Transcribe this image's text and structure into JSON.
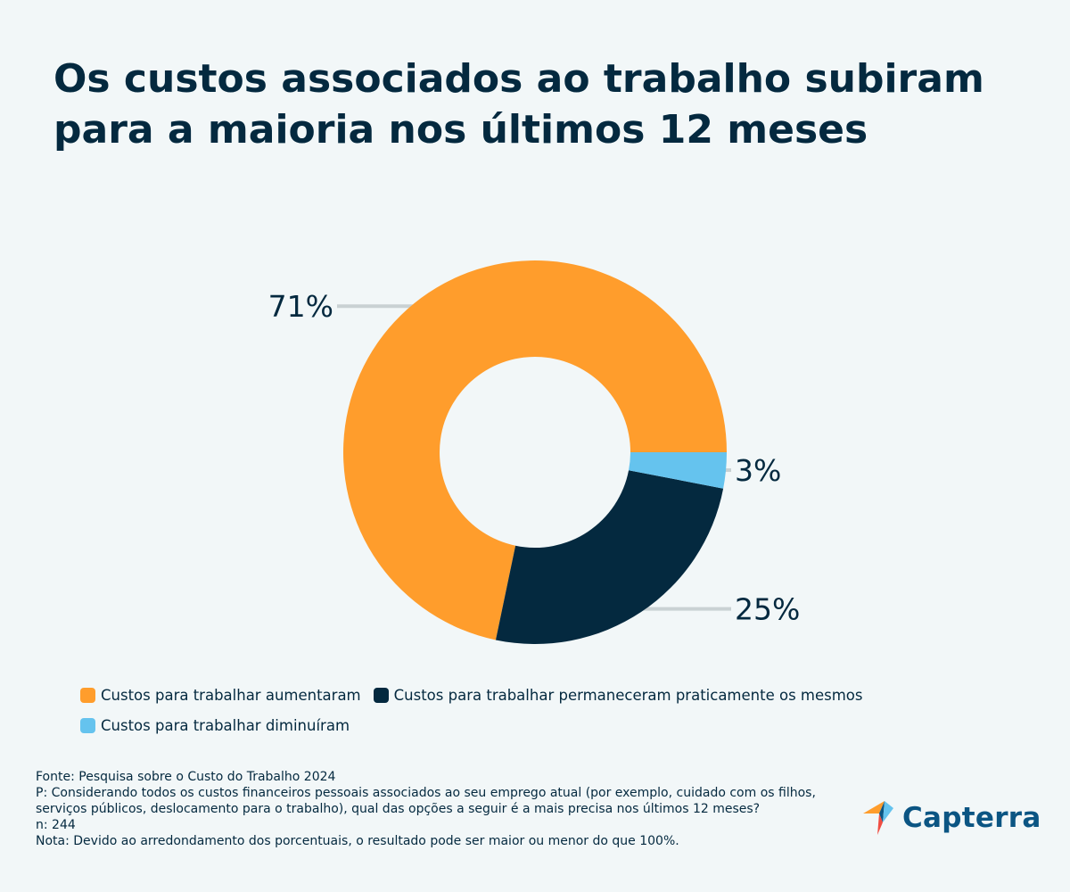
{
  "title": {
    "line1": "Os custos associados ao trabalho subiram",
    "line2": "para a maioria nos últimos 12 meses"
  },
  "chart_data": {
    "type": "pie",
    "variant": "donut",
    "title": "Os custos associados ao trabalho subiram para a maioria nos últimos 12 meses",
    "categories": [
      "Custos para trabalhar aumentaram",
      "Custos para trabalhar permaneceram praticamente os mesmos",
      "Custos para trabalhar diminuíram"
    ],
    "values": [
      71,
      25,
      3
    ],
    "labels": [
      "71%",
      "25%",
      "3%"
    ],
    "colors": [
      "#ff9d2c",
      "#04293f",
      "#65c3ee"
    ],
    "legend_position": "bottom"
  },
  "legend": {
    "items": [
      {
        "label": "Custos para trabalhar aumentaram",
        "color": "#ff9d2c"
      },
      {
        "label": "Custos para trabalhar permaneceram praticamente os mesmos",
        "color": "#04293f"
      },
      {
        "label": "Custos para trabalhar diminuíram",
        "color": "#65c3ee"
      }
    ]
  },
  "footer": {
    "source": "Fonte: Pesquisa sobre o Custo do Trabalho 2024",
    "question": "P: Considerando todos os custos financeiros pessoais associados ao seu emprego atual (por exemplo, cuidado com os filhos, serviços públicos, deslocamento para o trabalho), qual das opções a seguir é a mais precisa nos últimos 12 meses?",
    "n": "n: 244",
    "note": "Nota: Devido ao arredondamento dos porcentuais, o resultado pode ser maior ou menor do que 100%."
  },
  "logo": {
    "text": "Capterra",
    "icon": "capterra-arrow-icon",
    "colors": [
      "#ff9d2c",
      "#0b5583",
      "#65c3ee",
      "#f04e43"
    ]
  }
}
